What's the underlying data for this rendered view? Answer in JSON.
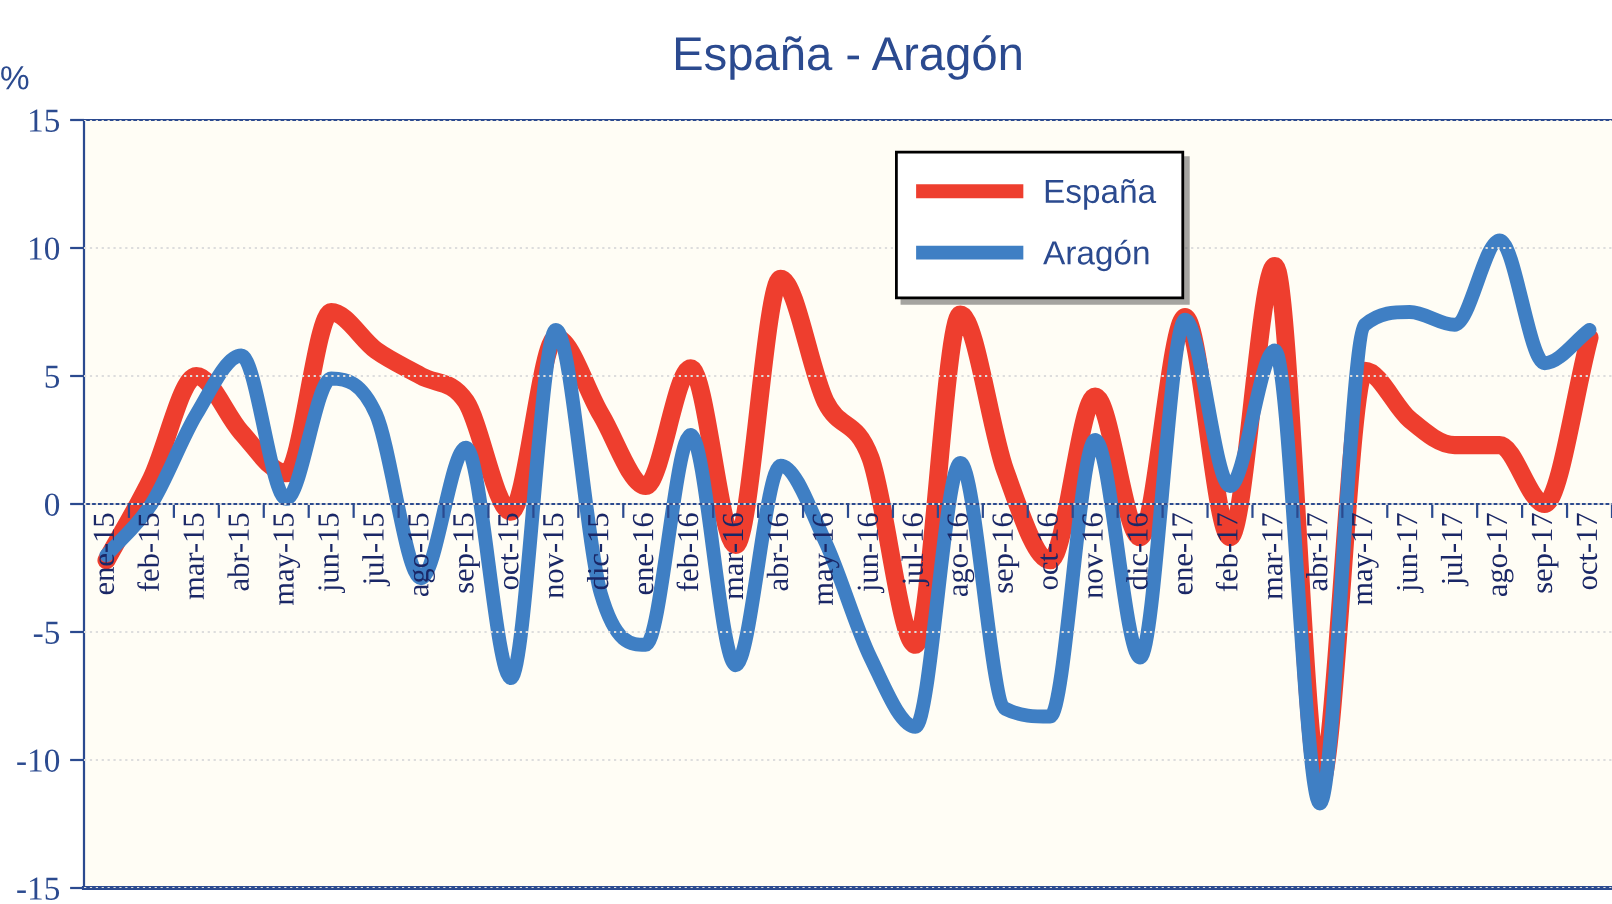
{
  "chart_data": {
    "type": "line",
    "title": "España - Aragón",
    "ylabel": "%",
    "categories": [
      "ene-15",
      "feb-15",
      "mar-15",
      "abr-15",
      "may-15",
      "jun-15",
      "jul-15",
      "ago-15",
      "sep-15",
      "oct-15",
      "nov-15",
      "dic-15",
      "ene-16",
      "feb-16",
      "mar-16",
      "abr-16",
      "may-16",
      "jun-16",
      "jul-16",
      "ago-16",
      "sep-16",
      "oct-16",
      "nov-16",
      "dic-16",
      "ene-17",
      "feb-17",
      "mar-17",
      "abr-17",
      "may-17",
      "jun-17",
      "jul-17",
      "ago-17",
      "sep-17",
      "oct-17"
    ],
    "series": [
      {
        "name": "España",
        "color": "#ee3e2e",
        "values": [
          -2.2,
          1.0,
          5.0,
          2.8,
          1.2,
          7.5,
          6.0,
          5.0,
          4.0,
          -0.3,
          6.5,
          3.5,
          0.7,
          5.3,
          -1.6,
          8.8,
          4.0,
          1.8,
          -5.5,
          7.4,
          1.3,
          -2.2,
          4.2,
          -1.3,
          7.3,
          -1.3,
          9.3,
          -11.0,
          5.2,
          3.3,
          2.3,
          2.3,
          0.0,
          6.5
        ]
      },
      {
        "name": "Aragón",
        "color": "#3f7fc4",
        "values": [
          -2.0,
          0.0,
          3.5,
          5.8,
          0.2,
          4.9,
          3.5,
          -2.9,
          2.2,
          -6.8,
          6.8,
          -3.5,
          -5.5,
          2.7,
          -6.3,
          1.5,
          -1.5,
          -6.0,
          -8.7,
          1.6,
          -8.0,
          -8.3,
          2.5,
          -6.0,
          7.2,
          0.7,
          6.0,
          -11.7,
          7.0,
          7.5,
          7.0,
          10.3,
          5.5,
          6.8
        ]
      }
    ],
    "ylim": [
      -15,
      15
    ],
    "yticks": [
      -15,
      -10,
      -5,
      0,
      5,
      10,
      15
    ],
    "grid": "y",
    "legend": "top right",
    "marker": "none",
    "line_style": "solid"
  }
}
